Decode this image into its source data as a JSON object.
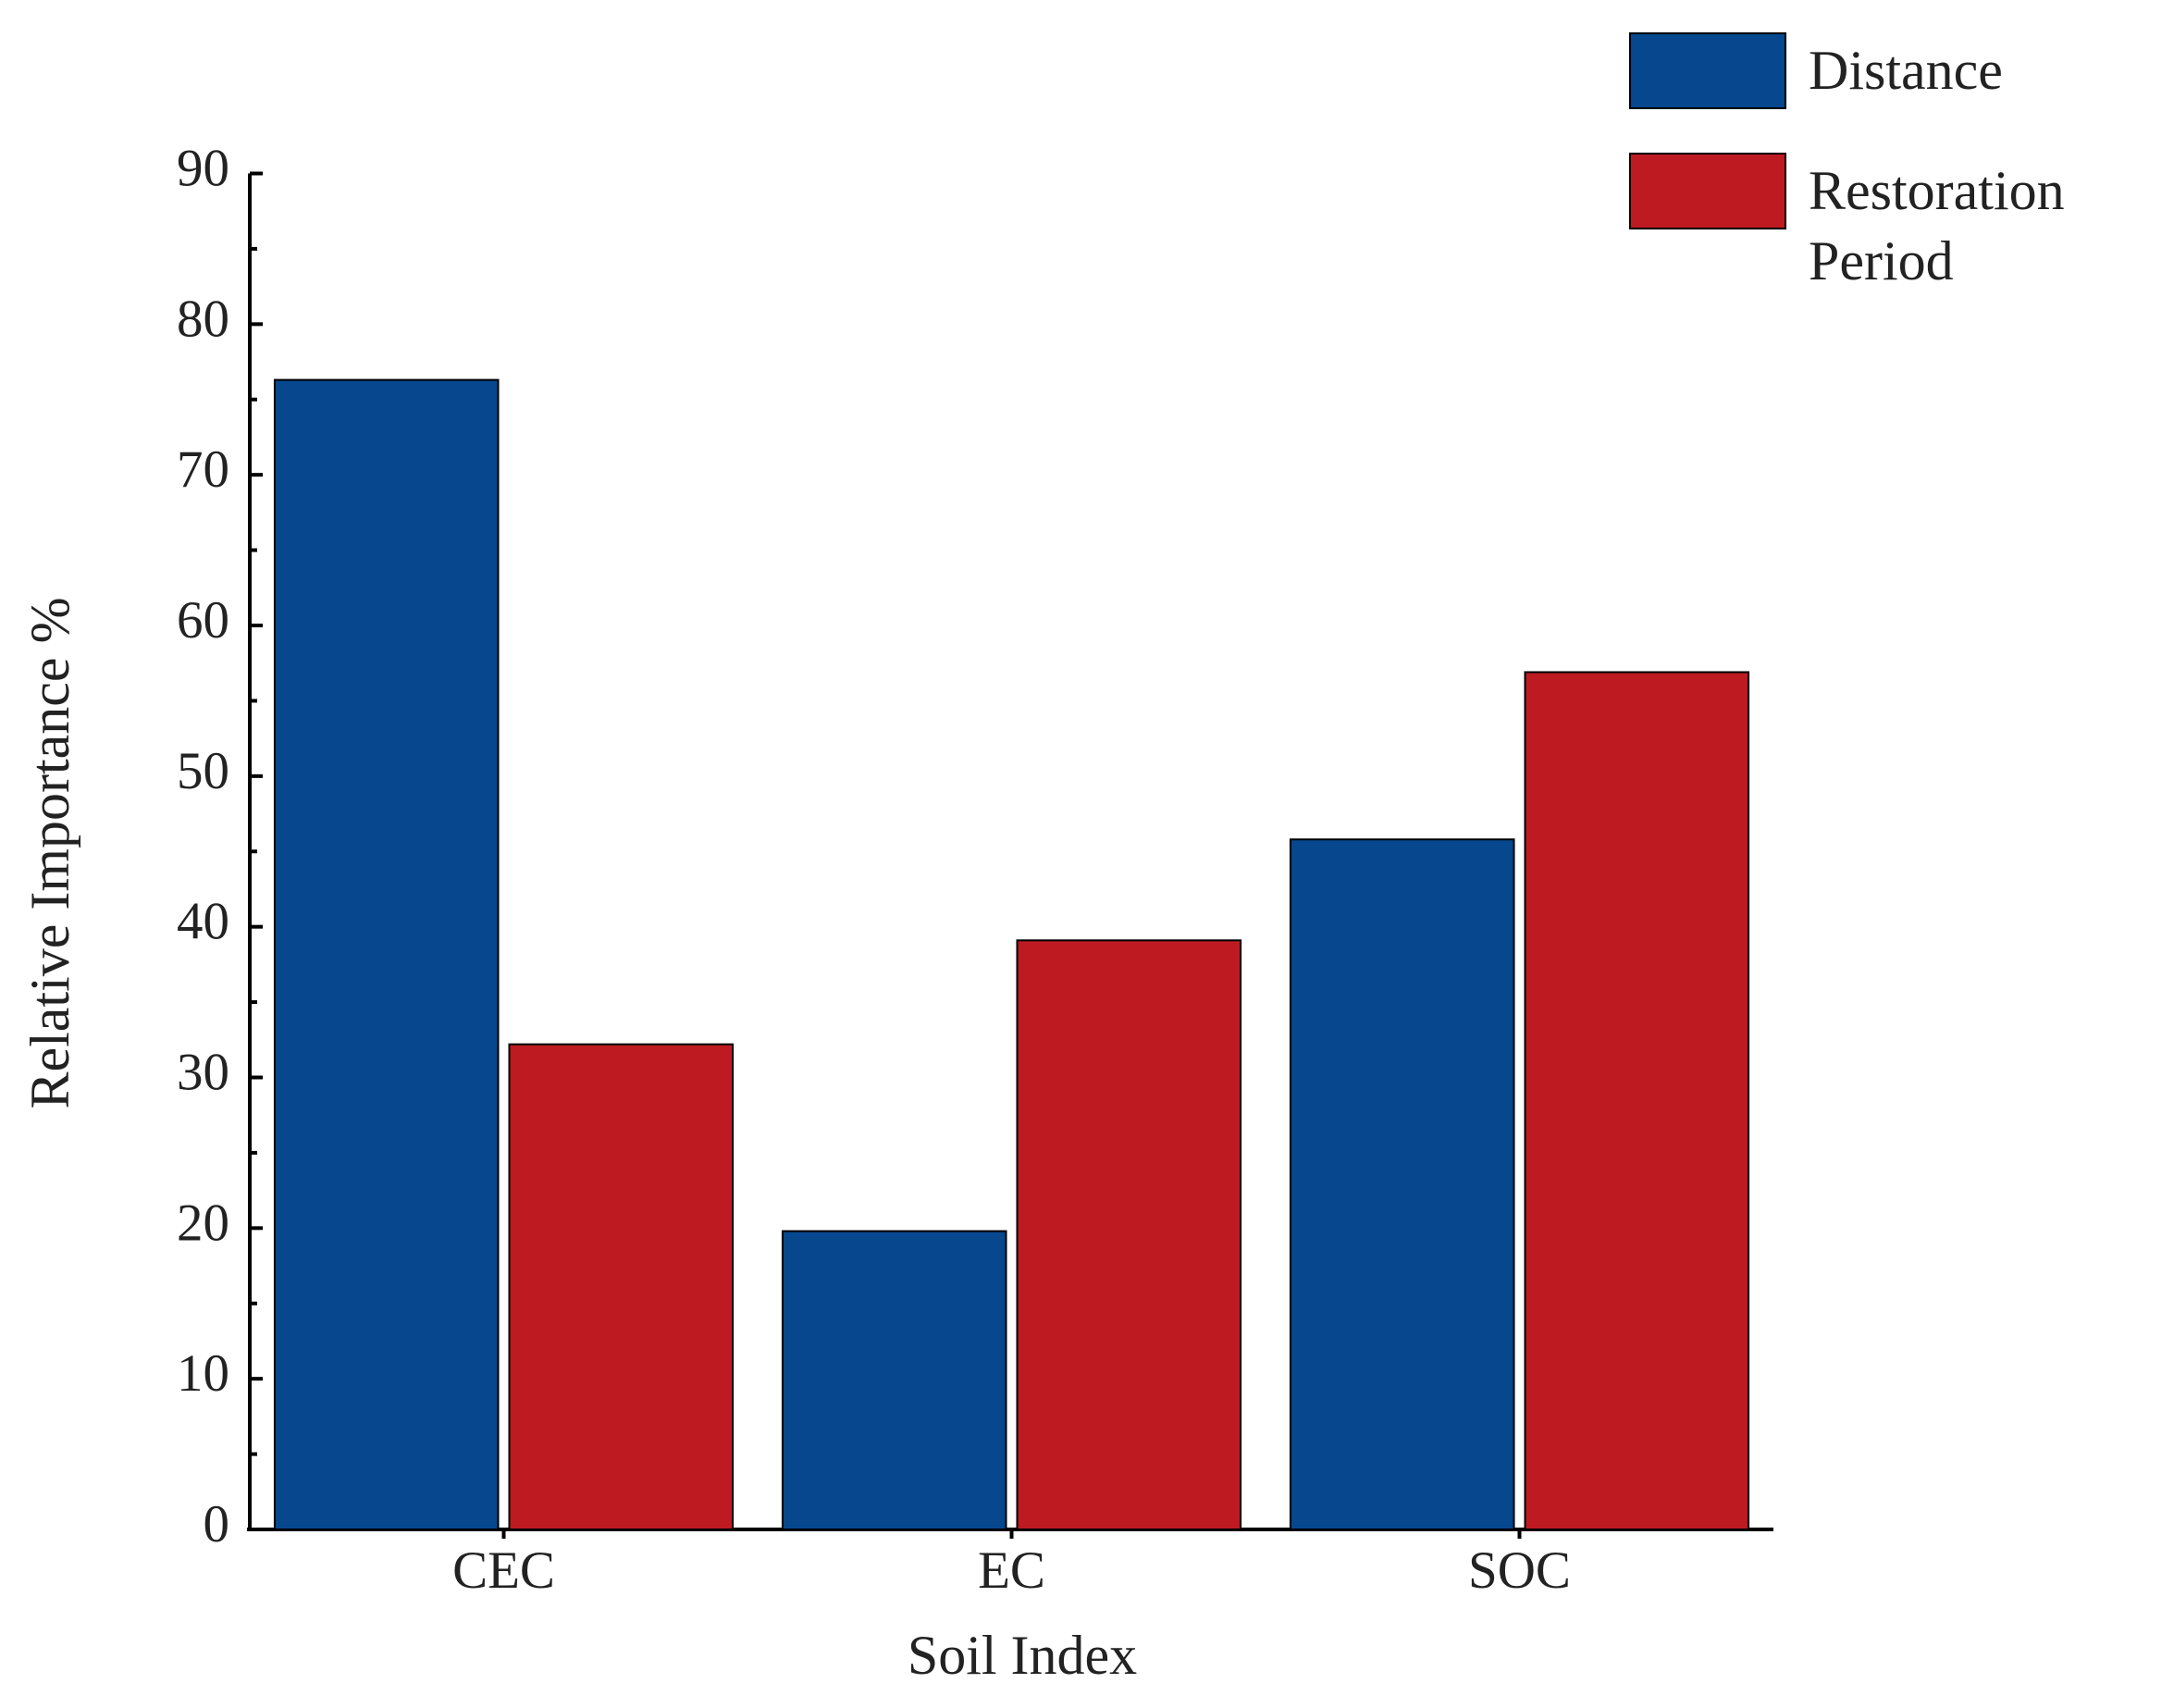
{
  "chart_data": {
    "type": "bar",
    "x_label": "Soil Index",
    "y_label": "Relative Importance %",
    "categories": [
      "CEC",
      "EC",
      "SOC"
    ],
    "series": [
      {
        "name": "Distance",
        "color": "#06478e",
        "values": [
          76.3,
          19.8,
          45.8
        ]
      },
      {
        "name": "Restoration Period",
        "color": "#bd1a21",
        "values": [
          32.2,
          39.1,
          56.9
        ]
      }
    ],
    "ylim": [
      0,
      90
    ],
    "yticks": [
      0,
      10,
      20,
      30,
      40,
      50,
      60,
      70,
      80,
      90
    ],
    "grid": false,
    "legend": "upper right"
  }
}
